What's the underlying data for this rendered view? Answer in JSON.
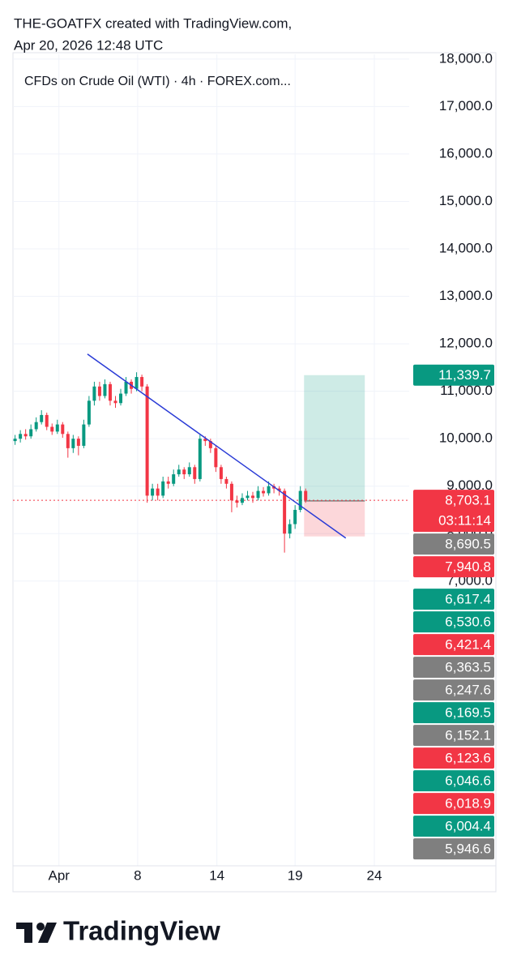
{
  "chart_data": {
    "type": "candlestick",
    "credit": "THE-GOATFX created with TradingView.com,",
    "date": "Apr 20, 2026 12:48 UTC",
    "title": "CFDs on Crude Oil (WTI) · 4h · FOREX.com...",
    "brand": "TradingView",
    "up_color": "#089981",
    "down_color": "#f23645",
    "open": [
      9950,
      10000,
      10100,
      10050,
      10200,
      10350,
      10500,
      10250,
      10150,
      10300,
      10100,
      9800,
      10000,
      9850,
      10300,
      10800,
      11100,
      10900,
      11150,
      10800,
      10750,
      10950,
      11200,
      11050,
      11300,
      11100,
      8800,
      8950,
      8800,
      9100,
      9050,
      9250,
      9350,
      9250,
      9400,
      9150,
      10000,
      9950,
      9800,
      9400,
      9150,
      9050,
      8700,
      8650,
      8750,
      8800,
      8750,
      8900,
      8850,
      9000,
      8950,
      8900,
      8000,
      8200,
      8500,
      8900
    ],
    "high": [
      10080,
      10180,
      10200,
      10300,
      10450,
      10600,
      10550,
      10320,
      10400,
      10350,
      10150,
      10080,
      10050,
      10400,
      10900,
      11200,
      11200,
      11250,
      11200,
      10900,
      11050,
      11300,
      11250,
      11400,
      11350,
      11150,
      9050,
      9050,
      9200,
      9200,
      9350,
      9450,
      9400,
      9500,
      9450,
      10080,
      10050,
      10000,
      9850,
      9450,
      9200,
      9100,
      8800,
      8850,
      8900,
      8880,
      9000,
      8980,
      9100,
      9050,
      9000,
      8950,
      8300,
      8600,
      9000,
      8950
    ],
    "low": [
      9870,
      9920,
      9980,
      10000,
      10150,
      10300,
      10180,
      10080,
      10100,
      10020,
      9600,
      9700,
      9650,
      9800,
      10250,
      10700,
      10800,
      10850,
      10700,
      10650,
      10700,
      10900,
      10950,
      11000,
      11000,
      8650,
      8700,
      8700,
      8750,
      8950,
      9000,
      9200,
      9150,
      9200,
      9050,
      9100,
      9850,
      9700,
      9300,
      9050,
      8950,
      8450,
      8550,
      8600,
      8700,
      8650,
      8700,
      8780,
      8800,
      8850,
      8800,
      7600,
      7900,
      8100,
      8450,
      8650
    ],
    "close": [
      10000,
      10100,
      10050,
      10200,
      10350,
      10500,
      10250,
      10150,
      10300,
      10100,
      9800,
      10000,
      9850,
      10300,
      10800,
      11100,
      10900,
      11150,
      10800,
      10750,
      10950,
      11200,
      11050,
      11300,
      11100,
      8800,
      8950,
      8800,
      9100,
      9050,
      9250,
      9350,
      9250,
      9400,
      9150,
      10000,
      9950,
      9800,
      9400,
      9150,
      9050,
      8700,
      8650,
      8750,
      8800,
      8750,
      8900,
      8850,
      9000,
      8950,
      8900,
      8000,
      8200,
      8500,
      8900,
      8703.1
    ],
    "xlim": [
      0,
      75
    ],
    "ylim": [
      1000,
      18100
    ],
    "xticks": [
      {
        "value": 8.7,
        "label": "Apr"
      },
      {
        "value": 23.6,
        "label": "8"
      },
      {
        "value": 38.6,
        "label": "14"
      },
      {
        "value": 53.4,
        "label": "19"
      },
      {
        "value": 68.4,
        "label": "24"
      }
    ],
    "yticks": [
      {
        "value": 7000,
        "label": "7,000.0"
      },
      {
        "value": 8000,
        "label": "8,000.0"
      },
      {
        "value": 9000,
        "label": "9,000.0"
      },
      {
        "value": 10000,
        "label": "10,000.0"
      },
      {
        "value": 11000,
        "label": "11,000.0"
      },
      {
        "value": 12000,
        "label": "12,000.0"
      },
      {
        "value": 13000,
        "label": "13,000.0"
      },
      {
        "value": 14000,
        "label": "14,000.0"
      },
      {
        "value": 15000,
        "label": "15,000.0"
      },
      {
        "value": 16000,
        "label": "16,000.0"
      },
      {
        "value": 17000,
        "label": "17,000.0"
      },
      {
        "value": 18000,
        "label": "18,000.0"
      }
    ],
    "grid": true,
    "trendline": {
      "x": [
        14.1,
        63
      ],
      "y": [
        11783,
        7906
      ],
      "color": "#2a3bd6"
    },
    "position": {
      "x": [
        55.1,
        66.6
      ],
      "entry": 8690.5,
      "target": 11339.7,
      "stop": 7940.8
    },
    "last_price": {
      "value": 8703.1,
      "label": "8,703.1",
      "countdown": "03:11:14",
      "color": "#f23645"
    },
    "price_labels": [
      {
        "value": 11339.7,
        "label": "11,339.7",
        "color": "#089981"
      },
      {
        "value": 8690.5,
        "label": "8,690.5",
        "color": "#7f7f7f"
      },
      {
        "value": 7940.8,
        "label": "7,940.8",
        "color": "#f23645"
      },
      {
        "value": 6617.4,
        "label": "6,617.4",
        "color": "#089981"
      },
      {
        "value": 6530.6,
        "label": "6,530.6",
        "color": "#089981"
      },
      {
        "value": 6421.4,
        "label": "6,421.4",
        "color": "#f23645"
      },
      {
        "value": 6363.5,
        "label": "6,363.5",
        "color": "#7f7f7f"
      },
      {
        "value": 6247.6,
        "label": "6,247.6",
        "color": "#7f7f7f"
      },
      {
        "value": 6169.5,
        "label": "6,169.5",
        "color": "#089981"
      },
      {
        "value": 6152.1,
        "label": "6,152.1",
        "color": "#7f7f7f"
      },
      {
        "value": 6123.6,
        "label": "6,123.6",
        "color": "#f23645"
      },
      {
        "value": 6046.6,
        "label": "6,046.6",
        "color": "#089981"
      },
      {
        "value": 6018.9,
        "label": "6,018.9",
        "color": "#f23645"
      },
      {
        "value": 6004.4,
        "label": "6,004.4",
        "color": "#089981"
      },
      {
        "value": 5946.6,
        "label": "5,946.6",
        "color": "#7f7f7f"
      }
    ]
  }
}
